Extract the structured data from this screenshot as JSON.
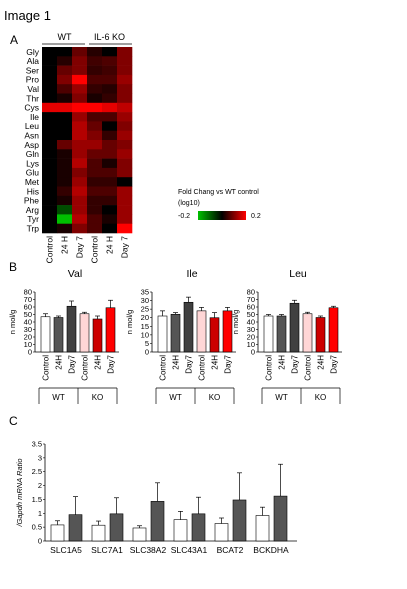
{
  "figure_title": "Image 1",
  "panels": {
    "a": "A",
    "b": "B",
    "c": "C"
  },
  "chart_data": [
    {
      "type": "heatmap",
      "group_labels": [
        "WT",
        "IL-6 KO"
      ],
      "columns": [
        "Control",
        "24 H",
        "Day 7",
        "Control",
        "24 H",
        "Day 7"
      ],
      "rows": [
        "Gly",
        "Ala",
        "Ser",
        "Pro",
        "Val",
        "Thr",
        "Cys",
        "Ile",
        "Leu",
        "Asn",
        "Asp",
        "Gln",
        "Lys",
        "Glu",
        "Met",
        "His",
        "Phe",
        "Arg",
        "Tyr",
        "Trp"
      ],
      "values": [
        [
          0.0,
          0.0,
          0.08,
          0.03,
          0.0,
          0.1
        ],
        [
          0.0,
          0.03,
          0.1,
          0.05,
          0.06,
          0.1
        ],
        [
          0.0,
          0.08,
          0.1,
          0.04,
          0.05,
          0.1
        ],
        [
          0.0,
          0.1,
          0.2,
          0.06,
          0.06,
          0.12
        ],
        [
          0.0,
          0.06,
          0.12,
          0.04,
          0.03,
          0.1
        ],
        [
          0.0,
          0.02,
          0.1,
          0.02,
          0.04,
          0.1
        ],
        [
          0.18,
          0.18,
          0.2,
          0.2,
          0.18,
          0.15
        ],
        [
          0.0,
          0.0,
          0.12,
          0.06,
          0.06,
          0.12
        ],
        [
          0.0,
          0.0,
          0.14,
          0.08,
          0.0,
          0.1
        ],
        [
          0.0,
          0.0,
          0.14,
          0.1,
          0.04,
          0.12
        ],
        [
          0.0,
          0.08,
          0.12,
          0.12,
          0.08,
          0.1
        ],
        [
          0.0,
          0.02,
          0.12,
          0.08,
          0.08,
          0.12
        ],
        [
          0.0,
          0.02,
          0.14,
          0.06,
          0.02,
          0.1
        ],
        [
          0.0,
          0.02,
          0.1,
          0.06,
          0.06,
          0.1
        ],
        [
          0.0,
          0.02,
          0.12,
          0.04,
          0.04,
          0.0
        ],
        [
          0.0,
          0.04,
          0.14,
          0.06,
          0.06,
          0.12
        ],
        [
          0.0,
          0.02,
          0.12,
          0.04,
          0.04,
          0.12
        ],
        [
          0.0,
          -0.08,
          0.12,
          0.04,
          0.0,
          0.12
        ],
        [
          0.0,
          -0.2,
          0.14,
          0.06,
          0.02,
          0.12
        ],
        [
          0.0,
          0.02,
          0.1,
          0.06,
          0.0,
          0.2
        ]
      ],
      "colorbar": {
        "label": "Fold Chang vs WT control\n(log10)",
        "min": -0.2,
        "max": 0.2,
        "min_label": "-0.2",
        "max_label": "0.2",
        "colors": {
          "low": "#00c000",
          "mid": "#000000",
          "high": "#ff0000"
        }
      }
    },
    {
      "type": "bar",
      "title": "Val",
      "ylabel": "n mol/g",
      "ylim": [
        0,
        80
      ],
      "yticks": [
        "0",
        "10",
        "20",
        "30",
        "40",
        "50",
        "60",
        "70",
        "80"
      ],
      "categories": [
        "Control",
        "24H",
        "Day7",
        "Control",
        "24H",
        "Day7"
      ],
      "groups": [
        "WT",
        "KO"
      ],
      "values": [
        47,
        46,
        61,
        51,
        44,
        59
      ],
      "errors": [
        4,
        2,
        7,
        2,
        4,
        10
      ]
    },
    {
      "type": "bar",
      "title": "Ile",
      "ylabel": "n mol/g",
      "ylim": [
        0,
        35
      ],
      "yticks": [
        "0",
        "5",
        "10",
        "15",
        "20",
        "25",
        "30",
        "35"
      ],
      "categories": [
        "Control",
        "24H",
        "Day7",
        "Control",
        "24H",
        "Day7"
      ],
      "groups": [
        "WT",
        "KO"
      ],
      "values": [
        21,
        22,
        29,
        24,
        20,
        24
      ],
      "errors": [
        3,
        1,
        3,
        2,
        3,
        2
      ]
    },
    {
      "type": "bar",
      "title": "Leu",
      "ylabel": "n mol/g",
      "ylim": [
        0,
        80
      ],
      "yticks": [
        "0",
        "10",
        "20",
        "30",
        "40",
        "50",
        "60",
        "70",
        "80"
      ],
      "categories": [
        "Control",
        "24H",
        "Day7",
        "Control",
        "24H",
        "Day7"
      ],
      "groups": [
        "WT",
        "KO"
      ],
      "values": [
        48,
        48,
        65,
        51,
        46,
        59
      ],
      "errors": [
        2,
        2,
        4,
        2,
        2,
        2
      ]
    },
    {
      "type": "bar",
      "ylabel": "/Gapdh mRNA Ratio",
      "ylim": [
        0,
        3.5
      ],
      "yticks": [
        "0",
        "0.5",
        "1",
        "1.5",
        "2",
        "2.5",
        "3",
        "3.5"
      ],
      "categories": [
        "SLC1A5",
        "SLC7A1",
        "SLC38A2",
        "SLC43A1",
        "BCAT2",
        "BCKDHA"
      ],
      "series": [
        {
          "values": [
            0.58,
            0.57,
            0.47,
            0.77,
            0.63,
            0.92
          ],
          "errors": [
            0.15,
            0.15,
            0.08,
            0.3,
            0.2,
            0.3
          ],
          "color": "#ffffff"
        },
        {
          "values": [
            0.95,
            0.98,
            1.43,
            0.98,
            1.48,
            1.62
          ],
          "errors": [
            0.65,
            0.58,
            0.67,
            0.6,
            0.98,
            1.15
          ],
          "color": "#555555"
        }
      ]
    }
  ],
  "colors": {
    "bar_white": "#ffffff",
    "bar_grey": "#555555",
    "bar_dark": "#404040",
    "bar_pink": "#ffd6d6",
    "bar_red_dark": "#cc0000",
    "bar_red": "#ff0000"
  }
}
